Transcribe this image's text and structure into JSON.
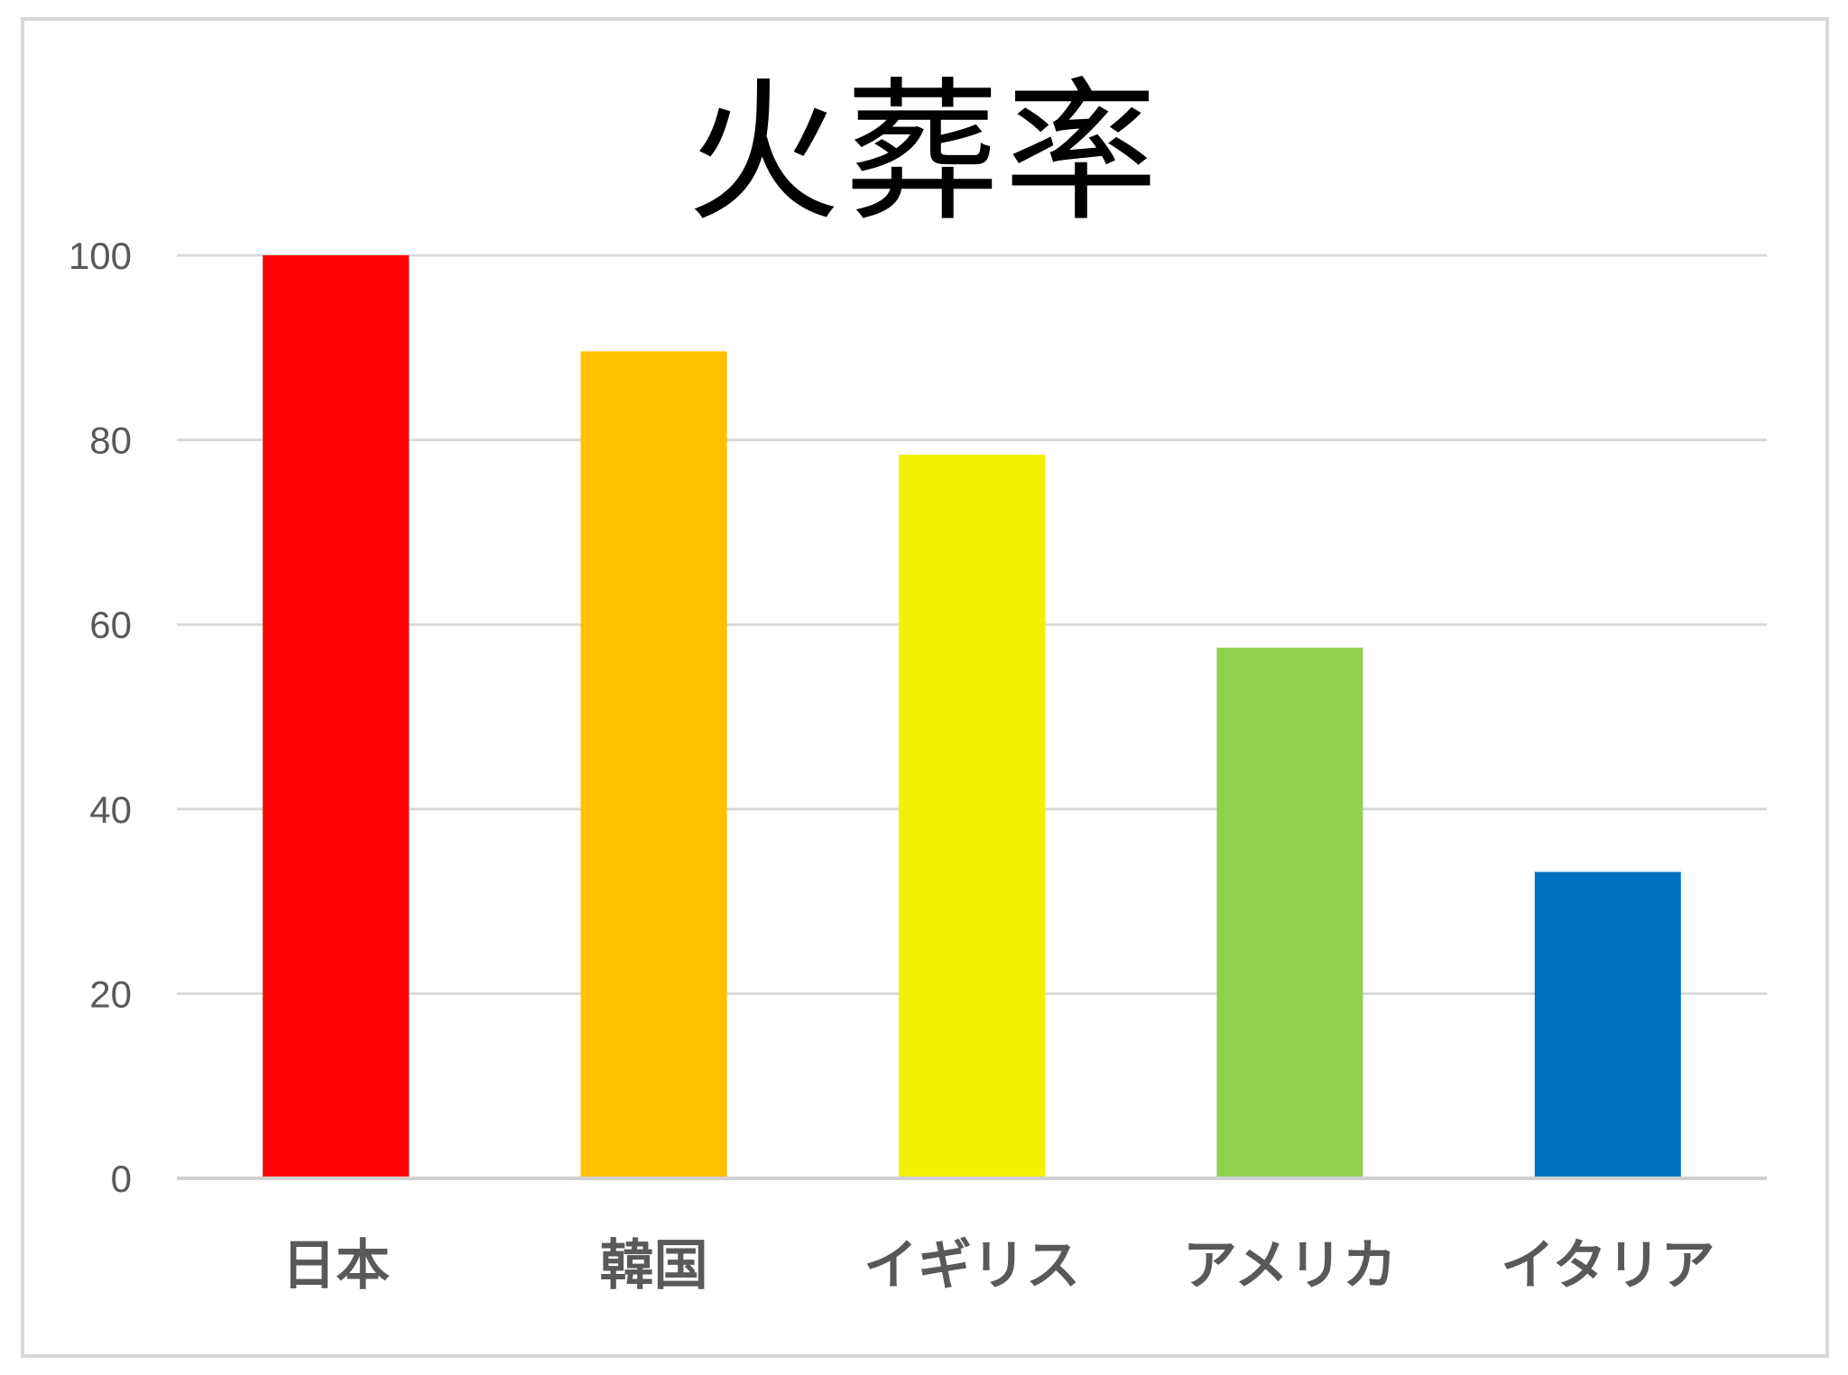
{
  "chart_data": {
    "type": "bar",
    "title": "火葬率",
    "categories": [
      "日本",
      "韓国",
      "イギリス",
      "アメリカ",
      "イタリア"
    ],
    "values": [
      100,
      89.6,
      78.4,
      57.5,
      33.2
    ],
    "colors": [
      "#ff0000",
      "#ffc000",
      "#f2f200",
      "#92d050",
      "#0070c0"
    ],
    "ylim": [
      0,
      100
    ],
    "yticks": [
      "0",
      "20",
      "40",
      "60",
      "80",
      "100"
    ],
    "grid": true,
    "legend": "none"
  }
}
